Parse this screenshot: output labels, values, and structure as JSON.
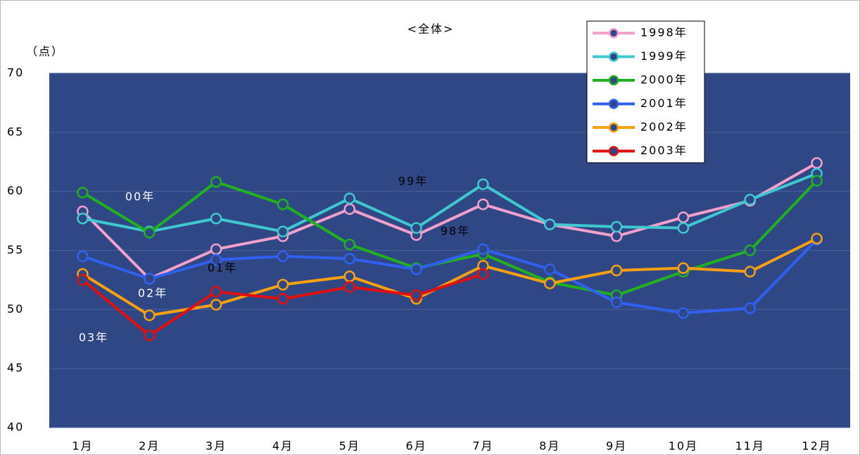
{
  "chart_data": {
    "type": "line",
    "title": "<全体>",
    "y_label": "（点）",
    "categories": [
      "1月",
      "2月",
      "3月",
      "4月",
      "5月",
      "6月",
      "7月",
      "8月",
      "9月",
      "10月",
      "11月",
      "12月"
    ],
    "series": [
      {
        "name": "1998年",
        "color": "#f4a0cc",
        "values": [
          58.3,
          52.6,
          55.1,
          56.2,
          58.5,
          56.3,
          58.9,
          57.2,
          56.2,
          57.8,
          59.2,
          62.4
        ]
      },
      {
        "name": "1999年",
        "color": "#40c8d0",
        "values": [
          57.7,
          56.6,
          57.7,
          56.6,
          59.4,
          56.9,
          60.6,
          57.2,
          57.0,
          56.9,
          59.3,
          61.5
        ]
      },
      {
        "name": "2000年",
        "color": "#20b020",
        "values": [
          59.9,
          56.5,
          60.8,
          58.9,
          55.5,
          53.5,
          54.7,
          52.3,
          51.2,
          53.2,
          55.0,
          60.9
        ]
      },
      {
        "name": "2001年",
        "color": "#3060f0",
        "values": [
          54.5,
          52.6,
          54.2,
          54.5,
          54.3,
          53.4,
          55.1,
          53.4,
          50.6,
          49.7,
          50.1,
          55.9
        ]
      },
      {
        "name": "2002年",
        "color": "#f8a010",
        "values": [
          53.0,
          49.5,
          50.4,
          52.1,
          52.8,
          50.9,
          53.7,
          52.2,
          53.3,
          53.5,
          53.2,
          56.0
        ]
      },
      {
        "name": "2003年",
        "color": "#e01010",
        "values": [
          52.5,
          47.8,
          51.5,
          50.9,
          51.9,
          51.2,
          53.0,
          null,
          null,
          null,
          null,
          null
        ]
      }
    ],
    "annotations": [
      "00年",
      "99年",
      "98年",
      "01年",
      "02年",
      "03年"
    ],
    "ylim": [
      40,
      70
    ],
    "yticks": [
      40,
      45,
      50,
      55,
      60,
      65,
      70
    ],
    "grid": true,
    "plot_background": "#2f4785"
  }
}
